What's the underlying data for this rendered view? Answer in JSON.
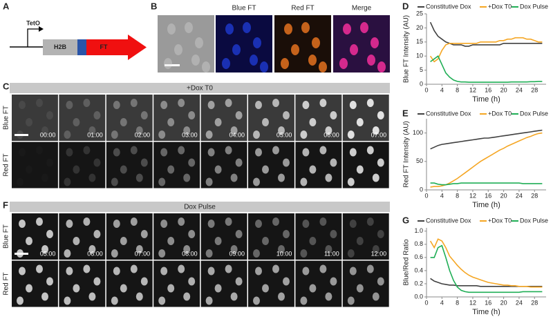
{
  "panels": {
    "A": {
      "label": "A",
      "promoter": "TetO",
      "box": "H2B",
      "arrow": "FT"
    },
    "B": {
      "label": "B",
      "headers": [
        "Blue FT",
        "Red FT",
        "Merge"
      ]
    },
    "C": {
      "label": "C",
      "banner": "+Dox T0",
      "rows": [
        "Blue FT",
        "Red FT"
      ],
      "times": [
        "00:00",
        "01:00",
        "02:00",
        "03:00",
        "04:00",
        "05:00",
        "06:00",
        "07:00"
      ]
    },
    "F": {
      "label": "F",
      "banner": "Dox Pulse",
      "rows": [
        "Blue FT",
        "Red FT"
      ],
      "times": [
        "05:00",
        "06:00",
        "07:00",
        "08:00",
        "09:00",
        "10:00",
        "11:00",
        "12:00"
      ]
    }
  },
  "chart_data": [
    {
      "type": "line",
      "label": "D",
      "ylabel": "Blue FT Intensity (AU)",
      "xlabel": "Time (h)",
      "x": [
        1,
        2,
        3,
        4,
        5,
        6,
        7,
        8,
        9,
        10,
        11,
        12,
        13,
        14,
        15,
        16,
        17,
        18,
        19,
        20,
        21,
        22,
        23,
        24,
        25,
        26,
        27,
        28,
        29,
        30
      ],
      "xlim": [
        0,
        31
      ],
      "xticks": [
        0,
        4,
        8,
        12,
        16,
        20,
        24,
        28
      ],
      "ylim": [
        0,
        25
      ],
      "yticks": [
        0,
        5,
        10,
        15,
        20,
        25
      ],
      "series": [
        {
          "name": "Constitutive Dox",
          "color": "#404040",
          "values": [
            22,
            19,
            17,
            16,
            15,
            14.5,
            14,
            14,
            14,
            13.5,
            13.5,
            14,
            14,
            14,
            14,
            14,
            14,
            14,
            14,
            14.5,
            14.5,
            14.5,
            14.5,
            14.5,
            14.5,
            14.5,
            14.5,
            14.5,
            14.5,
            14.5
          ]
        },
        {
          "name": "+Dox T0",
          "color": "#f5a623",
          "values": [
            10,
            8,
            9,
            12,
            14,
            14.5,
            14.5,
            14.5,
            14.5,
            14.5,
            14.5,
            14.5,
            14.5,
            15,
            15,
            15,
            15,
            15,
            15.5,
            15.5,
            16,
            16,
            16.5,
            16.5,
            16.5,
            16,
            16,
            15.5,
            15,
            15
          ]
        },
        {
          "name": "Dox Pulse",
          "color": "#1fae55",
          "values": [
            8,
            9,
            10,
            7,
            4,
            2.5,
            1.5,
            1,
            0.8,
            0.8,
            0.7,
            0.7,
            0.7,
            0.7,
            0.7,
            0.7,
            0.7,
            0.7,
            0.7,
            0.7,
            0.7,
            0.8,
            0.8,
            0.8,
            0.8,
            0.8,
            0.9,
            0.9,
            1,
            1
          ]
        }
      ]
    },
    {
      "type": "line",
      "label": "E",
      "ylabel": "Red FT Intensity (AU)",
      "xlabel": "Time (h)",
      "x": [
        1,
        2,
        3,
        4,
        5,
        6,
        7,
        8,
        9,
        10,
        11,
        12,
        13,
        14,
        15,
        16,
        17,
        18,
        19,
        20,
        21,
        22,
        23,
        24,
        25,
        26,
        27,
        28,
        29,
        30
      ],
      "xlim": [
        0,
        31
      ],
      "xticks": [
        0,
        4,
        8,
        12,
        16,
        20,
        24,
        28
      ],
      "ylim": [
        0,
        125
      ],
      "yticks": [
        0,
        50,
        100
      ],
      "series": [
        {
          "name": "Constitutive Dox",
          "color": "#404040",
          "values": [
            72,
            75,
            78,
            80,
            81,
            82,
            83,
            84,
            85,
            86,
            87,
            88,
            89,
            90,
            91,
            91,
            92,
            93,
            94,
            95,
            96,
            97,
            98,
            99,
            100,
            101,
            102,
            103,
            104,
            105
          ]
        },
        {
          "name": "+Dox T0",
          "color": "#f5a623",
          "values": [
            5,
            6,
            6,
            7,
            9,
            12,
            16,
            20,
            25,
            30,
            35,
            40,
            45,
            50,
            54,
            58,
            62,
            66,
            70,
            73,
            77,
            80,
            83,
            86,
            89,
            92,
            94,
            97,
            99,
            100
          ]
        },
        {
          "name": "Dox Pulse",
          "color": "#1fae55",
          "values": [
            12,
            12,
            10,
            9,
            9,
            10,
            11,
            11,
            12,
            12,
            12,
            12,
            12,
            12,
            12,
            12,
            12,
            12,
            12,
            12,
            12,
            12,
            12,
            12,
            11,
            11,
            11,
            11,
            11,
            11
          ]
        }
      ]
    },
    {
      "type": "line",
      "label": "G",
      "ylabel": "Blue/Red Ratio",
      "xlabel": "Time (h)",
      "x": [
        1,
        2,
        3,
        4,
        5,
        6,
        7,
        8,
        9,
        10,
        11,
        12,
        13,
        14,
        15,
        16,
        17,
        18,
        19,
        20,
        21,
        22,
        23,
        24,
        25,
        26,
        27,
        28,
        29,
        30
      ],
      "xlim": [
        0,
        31
      ],
      "xticks": [
        0,
        4,
        8,
        12,
        16,
        20,
        24,
        28
      ],
      "ylim": [
        0,
        1.05
      ],
      "yticks": [
        {
          "value": 0,
          "label": "0.0"
        },
        0.2,
        0.4,
        0.6,
        0.8,
        {
          "value": 1,
          "label": "1.0"
        }
      ],
      "series": [
        {
          "name": "Constitutive Dox",
          "color": "#404040",
          "values": [
            0.28,
            0.24,
            0.22,
            0.2,
            0.19,
            0.18,
            0.18,
            0.17,
            0.17,
            0.17,
            0.17,
            0.17,
            0.17,
            0.16,
            0.16,
            0.16,
            0.16,
            0.16,
            0.16,
            0.16,
            0.16,
            0.16,
            0.16,
            0.16,
            0.16,
            0.16,
            0.16,
            0.16,
            0.16,
            0.16
          ]
        },
        {
          "name": "+Dox T0",
          "color": "#f5a623",
          "values": [
            0.85,
            0.75,
            0.88,
            0.85,
            0.75,
            0.62,
            0.55,
            0.48,
            0.42,
            0.37,
            0.33,
            0.3,
            0.28,
            0.26,
            0.24,
            0.22,
            0.21,
            0.2,
            0.19,
            0.18,
            0.18,
            0.17,
            0.17,
            0.16,
            0.16,
            0.16,
            0.15,
            0.15,
            0.15,
            0.15
          ]
        },
        {
          "name": "Dox Pulse",
          "color": "#1fae55",
          "values": [
            0.6,
            0.6,
            0.75,
            0.78,
            0.6,
            0.4,
            0.25,
            0.15,
            0.1,
            0.08,
            0.07,
            0.07,
            0.07,
            0.07,
            0.07,
            0.07,
            0.07,
            0.07,
            0.07,
            0.07,
            0.07,
            0.07,
            0.07,
            0.07,
            0.08,
            0.08,
            0.08,
            0.08,
            0.08,
            0.08
          ]
        }
      ]
    }
  ]
}
